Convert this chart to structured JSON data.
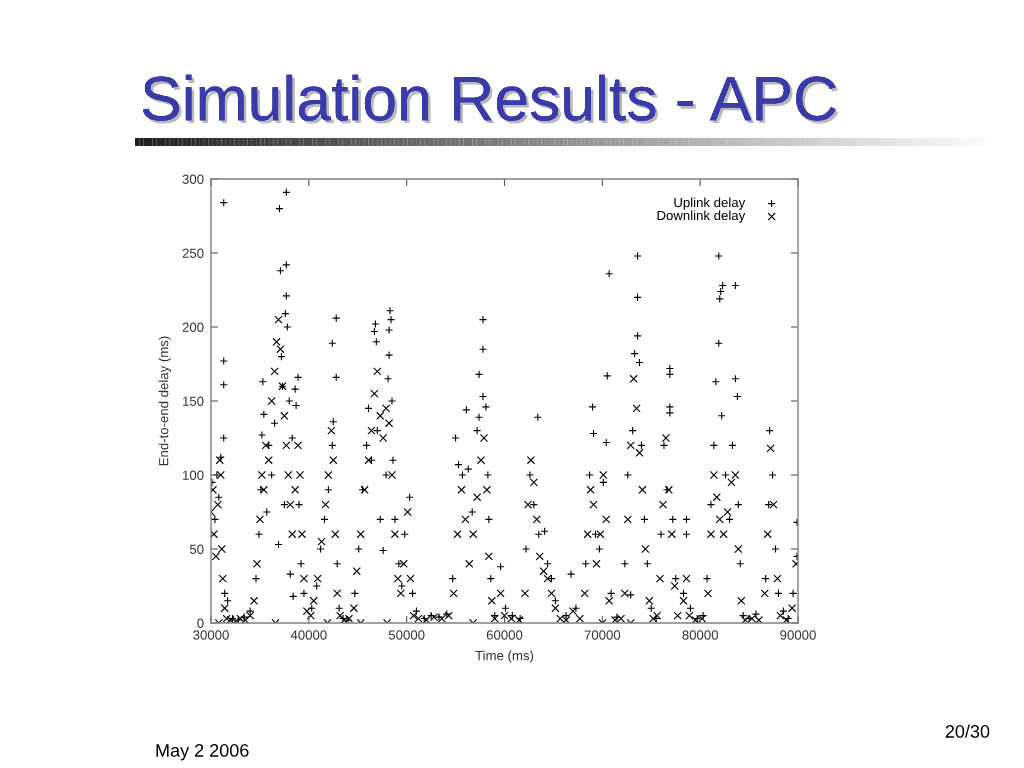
{
  "chart_data": {
    "type": "scatter",
    "title": "Simulation Results - APC",
    "xlabel": "Time (ms)",
    "ylabel": "End-to-end delay (ms)",
    "xlim": [
      30000,
      90000
    ],
    "ylim": [
      0,
      300
    ],
    "xticks": [
      30000,
      40000,
      50000,
      60000,
      70000,
      80000,
      90000
    ],
    "yticks": [
      0,
      50,
      100,
      150,
      200,
      250,
      300
    ],
    "grid": false,
    "legend": "top right",
    "annotations": [
      "May 2 2006",
      "20/30"
    ],
    "series": [
      {
        "name": "Uplink delay",
        "color": "#000000",
        "marker": "plus",
        "x": [
          30100,
          30400,
          30600,
          30800,
          31000,
          31300,
          31300,
          31300,
          31300,
          31400,
          31700,
          32200,
          32800,
          33400,
          34000,
          34600,
          34900,
          35100,
          35200,
          35300,
          35400,
          35700,
          35900,
          36200,
          36500,
          36900,
          37000,
          37100,
          37200,
          37300,
          37500,
          37700,
          37700,
          37700,
          37600,
          37800,
          38000,
          38300,
          38100,
          38400,
          38600,
          38700,
          38900,
          39000,
          39200,
          39500,
          40300,
          40800,
          41200,
          41600,
          42000,
          42400,
          42400,
          42500,
          42800,
          42800,
          42900,
          43100,
          43500,
          44000,
          44700,
          45100,
          45500,
          45900,
          46100,
          46400,
          46800,
          46700,
          46900,
          47000,
          47300,
          47600,
          47900,
          48100,
          48200,
          48200,
          48300,
          48400,
          48500,
          48600,
          48800,
          49200,
          49500,
          49800,
          50300,
          50600,
          51000,
          51800,
          52500,
          53300,
          54100,
          54700,
          55000,
          55300,
          55700,
          56100,
          56300,
          56700,
          57200,
          57400,
          57400,
          57800,
          57800,
          57800,
          58100,
          58300,
          58400,
          58600,
          59000,
          59600,
          60100,
          60800,
          61600,
          62200,
          62600,
          63000,
          63400,
          63500,
          64100,
          64400,
          64800,
          65200,
          66300,
          66800,
          67300,
          68300,
          68700,
          69000,
          69100,
          69300,
          69700,
          70100,
          70400,
          70700,
          70500,
          70900,
          71500,
          72300,
          72600,
          72900,
          73100,
          73300,
          73600,
          73600,
          73600,
          73800,
          74000,
          74300,
          74600,
          75000,
          75500,
          76000,
          76300,
          76600,
          76900,
          76900,
          76900,
          76900,
          77200,
          77500,
          78300,
          78600,
          78600,
          79000,
          79700,
          80300,
          80700,
          81100,
          81400,
          81600,
          81900,
          81900,
          82000,
          82100,
          82300,
          82200,
          82600,
          83000,
          83300,
          83600,
          83600,
          83800,
          83900,
          84100,
          84400,
          85000,
          85700,
          86700,
          87000,
          87100,
          87400,
          87700,
          88000,
          88500,
          89000,
          89500,
          89900,
          89900
        ],
        "values": [
          95,
          70,
          100,
          85,
          112,
          125,
          161,
          177,
          284,
          20,
          15,
          3,
          2,
          4,
          8,
          30,
          60,
          90,
          127,
          163,
          141,
          75,
          120,
          100,
          135,
          53,
          280,
          238,
          180,
          160,
          80,
          291,
          242,
          221,
          209,
          200,
          150,
          125,
          33,
          18,
          158,
          147,
          166,
          80,
          40,
          20,
          10,
          25,
          50,
          70,
          90,
          120,
          189,
          136,
          206,
          166,
          40,
          10,
          3,
          2,
          20,
          50,
          90,
          120,
          145,
          110,
          202,
          197,
          190,
          130,
          70,
          49,
          100,
          165,
          181,
          198,
          211,
          205,
          150,
          110,
          70,
          40,
          25,
          60,
          85,
          20,
          8,
          3,
          5,
          4,
          6,
          30,
          125,
          107,
          100,
          144,
          104,
          75,
          130,
          139,
          168,
          205,
          185,
          153,
          146,
          100,
          70,
          30,
          5,
          38,
          10,
          5,
          3,
          50,
          100,
          80,
          139,
          60,
          62,
          40,
          30,
          15,
          5,
          33,
          10,
          40,
          100,
          146,
          128,
          60,
          50,
          95,
          122,
          236,
          167,
          20,
          4,
          40,
          100,
          19,
          130,
          182,
          248,
          220,
          194,
          176,
          120,
          70,
          40,
          10,
          3,
          60,
          120,
          90,
          172,
          168,
          146,
          142,
          70,
          30,
          20,
          70,
          60,
          10,
          3,
          5,
          30,
          80,
          120,
          163,
          248,
          189,
          219,
          224,
          228,
          140,
          100,
          70,
          120,
          165,
          228,
          153,
          80,
          40,
          5,
          3,
          6,
          30,
          80,
          130,
          100,
          50,
          20,
          8,
          3,
          20,
          68,
          45
        ]
      },
      {
        "name": "Downlink delay",
        "color": "#000000",
        "marker": "cross",
        "x": [
          30000,
          30200,
          30300,
          30500,
          30700,
          30900,
          31000,
          31100,
          31200,
          31400,
          31600,
          32000,
          32500,
          33000,
          33500,
          34000,
          34400,
          34700,
          35000,
          35200,
          35400,
          35600,
          35900,
          36200,
          36500,
          36700,
          36900,
          37100,
          37300,
          37500,
          37700,
          37900,
          38100,
          38300,
          38600,
          38900,
          39100,
          39300,
          39500,
          39800,
          40200,
          40500,
          40900,
          41300,
          41700,
          42000,
          42300,
          42500,
          42700,
          42900,
          43200,
          43600,
          44100,
          44600,
          44900,
          45300,
          45700,
          46100,
          46400,
          46700,
          47000,
          47300,
          47600,
          47900,
          48200,
          48500,
          48800,
          49100,
          49400,
          49700,
          50100,
          50400,
          50700,
          51200,
          52000,
          52800,
          53600,
          54300,
          54800,
          55200,
          55600,
          56000,
          56400,
          56800,
          57200,
          57600,
          57900,
          58200,
          58400,
          58700,
          59000,
          59600,
          60000,
          60700,
          61500,
          62100,
          62400,
          62700,
          63000,
          63300,
          63600,
          64000,
          64400,
          64800,
          65200,
          65700,
          66300,
          67000,
          67700,
          68200,
          68500,
          68800,
          69100,
          69400,
          69800,
          70100,
          70400,
          70700,
          71300,
          71900,
          72300,
          72600,
          72900,
          73200,
          73500,
          73800,
          74100,
          74400,
          74800,
          75200,
          75600,
          75900,
          76200,
          76500,
          76800,
          77100,
          77400,
          77700,
          78300,
          78600,
          78900,
          79500,
          80200,
          80800,
          81100,
          81400,
          81700,
          82000,
          82400,
          82800,
          83200,
          83600,
          83900,
          84200,
          84600,
          85300,
          86000,
          86600,
          86900,
          87200,
          87500,
          87900,
          88200,
          88800,
          89400,
          89800,
          30800,
          36600,
          41900,
          45300,
          48000,
          56800,
          70000,
          72900
        ],
        "values": [
          75,
          90,
          60,
          45,
          80,
          110,
          100,
          50,
          30,
          10,
          3,
          2,
          1,
          3,
          2,
          5,
          15,
          40,
          70,
          100,
          90,
          120,
          110,
          150,
          170,
          190,
          205,
          185,
          160,
          140,
          120,
          100,
          80,
          60,
          90,
          120,
          100,
          60,
          30,
          8,
          5,
          15,
          30,
          55,
          80,
          100,
          130,
          110,
          60,
          20,
          5,
          2,
          3,
          10,
          35,
          60,
          90,
          110,
          130,
          155,
          170,
          140,
          125,
          145,
          135,
          100,
          60,
          30,
          20,
          40,
          75,
          30,
          5,
          3,
          2,
          4,
          3,
          5,
          20,
          60,
          90,
          70,
          40,
          60,
          85,
          110,
          125,
          90,
          45,
          15,
          3,
          20,
          5,
          3,
          2,
          20,
          80,
          110,
          95,
          70,
          45,
          35,
          30,
          20,
          10,
          3,
          2,
          8,
          3,
          20,
          60,
          90,
          80,
          40,
          60,
          100,
          70,
          15,
          2,
          3,
          20,
          70,
          120,
          165,
          145,
          115,
          90,
          50,
          15,
          3,
          5,
          30,
          80,
          125,
          90,
          60,
          25,
          5,
          15,
          30,
          5,
          2,
          3,
          20,
          60,
          100,
          85,
          70,
          60,
          75,
          95,
          100,
          50,
          15,
          2,
          3,
          2,
          20,
          60,
          118,
          80,
          30,
          5,
          2,
          10,
          40,
          0,
          0,
          0,
          0,
          0,
          0,
          0,
          0
        ]
      }
    ]
  }
}
